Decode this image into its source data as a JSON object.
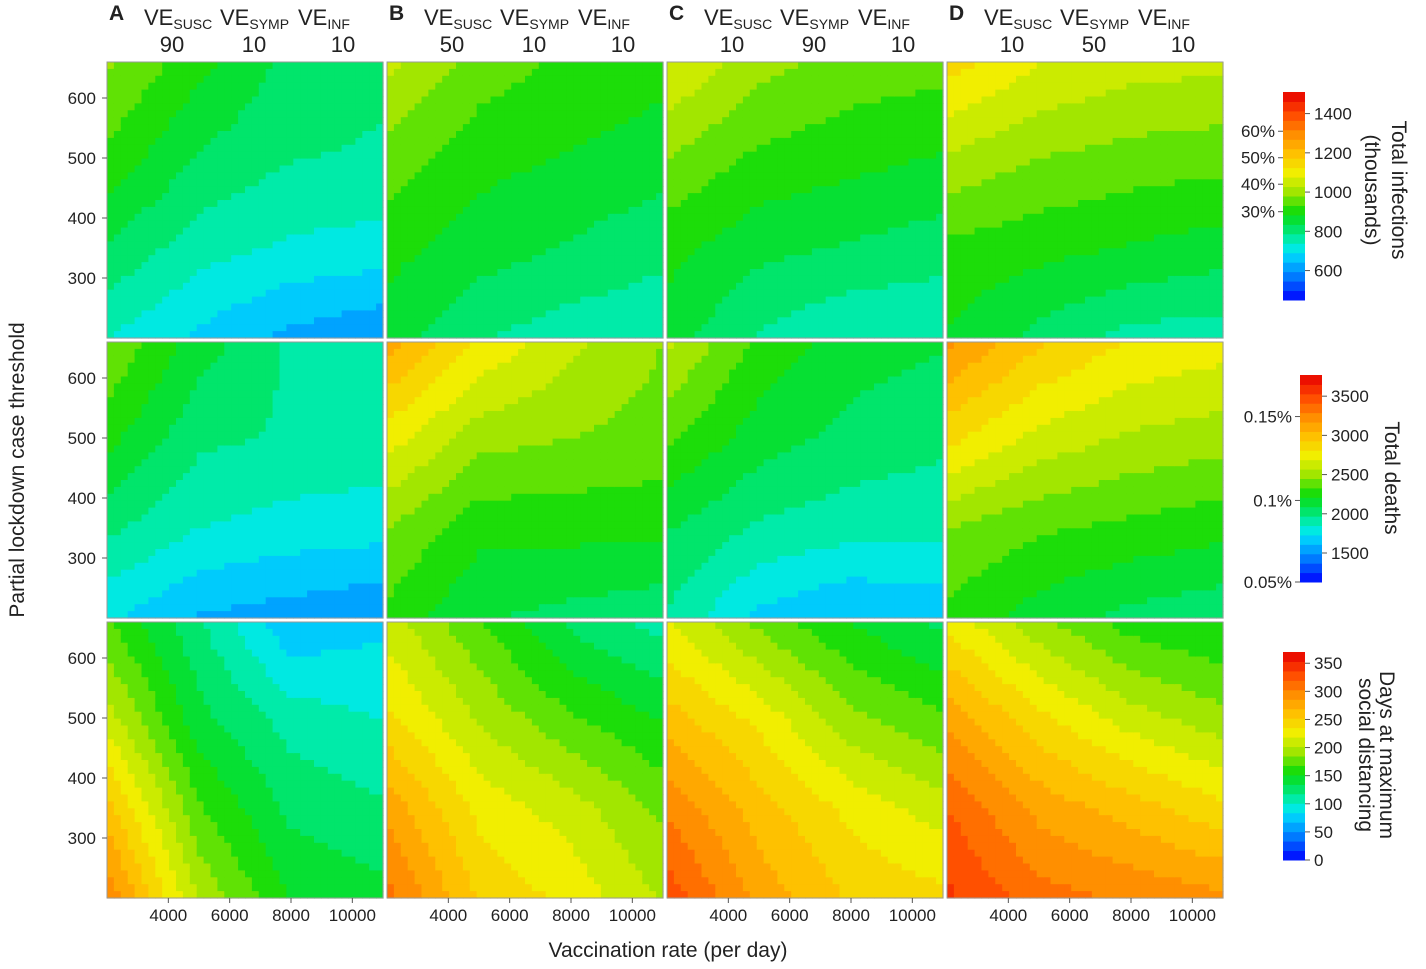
{
  "x_axis_label": "Vaccination rate (per day)",
  "y_axis_label": "Partial lockdown case threshold",
  "x_ticks": [
    "4000",
    "6000",
    "8000",
    "10000"
  ],
  "y_ticks": [
    "600",
    "500",
    "400",
    "300"
  ],
  "columns": [
    {
      "letter": "A",
      "ve_susc": "90",
      "ve_symp": "10",
      "ve_inf": "10"
    },
    {
      "letter": "B",
      "ve_susc": "50",
      "ve_symp": "10",
      "ve_inf": "10"
    },
    {
      "letter": "C",
      "ve_susc": "10",
      "ve_symp": "90",
      "ve_inf": "10"
    },
    {
      "letter": "D",
      "ve_susc": "10",
      "ve_symp": "50",
      "ve_inf": "10"
    }
  ],
  "ve_label": "VE",
  "ve_sub": {
    "susc": "SUSC",
    "symp": "SYMP",
    "inf": "INF"
  },
  "colorbars": [
    {
      "title1": "Total infections",
      "title2": "(thousands)",
      "range": [
        450,
        1510
      ],
      "ticks": [
        "1400",
        "1200",
        "1000",
        "800",
        "600"
      ],
      "tick_values": [
        1400,
        1200,
        1000,
        800,
        600
      ],
      "left_ticks": [
        "60%",
        "50%",
        "40%",
        "30%"
      ],
      "left_tick_values": [
        1310,
        1175,
        1040,
        900
      ]
    },
    {
      "title1": "Total deaths",
      "title2": "",
      "range": [
        1130,
        3770
      ],
      "ticks": [
        "3500",
        "3000",
        "2500",
        "2000",
        "1500"
      ],
      "tick_values": [
        3500,
        3000,
        2500,
        2000,
        1500
      ],
      "left_ticks": [
        "0.15%",
        "0.1%",
        "0.05%"
      ],
      "left_tick_values": [
        3240,
        2170,
        1130
      ]
    },
    {
      "title1": "Days at maximum",
      "title2": "social distancing",
      "range": [
        0,
        370
      ],
      "ticks": [
        "350",
        "300",
        "250",
        "200",
        "150",
        "100",
        "50",
        "0"
      ],
      "tick_values": [
        350,
        300,
        250,
        200,
        150,
        100,
        50,
        0
      ],
      "left_ticks": [],
      "left_tick_values": []
    }
  ],
  "chart_data": {
    "type": "heatmap",
    "style": "filled contour, rainbow colormap (blue low to red high)",
    "xlim": [
      2000,
      11000
    ],
    "ylim": [
      200,
      660
    ],
    "grid_x": [
      2000,
      5000,
      8000,
      11000
    ],
    "grid_y": [
      200,
      350,
      500,
      660
    ],
    "rows": [
      "Total infections (thousands)",
      "Total deaths",
      "Days at maximum social distancing"
    ],
    "panels": [
      [
        {
          "column": "A",
          "z": [
            [
              740,
              680,
              630,
              600
            ],
            [
              830,
              760,
              730,
              720
            ],
            [
              920,
              830,
              790,
              780
            ],
            [
              990,
              900,
              820,
              800
            ]
          ]
        },
        {
          "column": "B",
          "z": [
            [
              860,
              790,
              760,
              750
            ],
            [
              900,
              860,
              830,
              800
            ],
            [
              960,
              900,
              880,
              860
            ],
            [
              1040,
              960,
              920,
              900
            ]
          ]
        },
        {
          "column": "C",
          "z": [
            [
              860,
              780,
              740,
              740
            ],
            [
              900,
              850,
              830,
              810
            ],
            [
              980,
              920,
              900,
              880
            ],
            [
              1080,
              1000,
              960,
              950
            ]
          ]
        },
        {
          "column": "D",
          "z": [
            [
              880,
              820,
              770,
              760
            ],
            [
              920,
              900,
              880,
              860
            ],
            [
              1020,
              980,
              960,
              950
            ],
            [
              1150,
              1080,
              1050,
              1040
            ]
          ]
        }
      ],
      [
        {
          "column": "A",
          "z": [
            [
              1750,
              1600,
              1550,
              1500
            ],
            [
              2000,
              1850,
              1800,
              1780
            ],
            [
              2250,
              2000,
              1950,
              1930
            ],
            [
              2450,
              2150,
              1950,
              1950
            ]
          ]
        },
        {
          "column": "B",
          "z": [
            [
              2300,
              2100,
              2050,
              2000
            ],
            [
              2450,
              2250,
              2250,
              2250
            ],
            [
              2750,
              2500,
              2450,
              2400
            ],
            [
              3100,
              2800,
              2600,
              2450
            ]
          ]
        },
        {
          "column": "C",
          "z": [
            [
              1950,
              1700,
              1600,
              1650
            ],
            [
              2100,
              1950,
              1900,
              1880
            ],
            [
              2350,
              2150,
              2050,
              2000
            ],
            [
              2600,
              2300,
              2150,
              2100
            ]
          ]
        },
        {
          "column": "D",
          "z": [
            [
              2300,
              2150,
              2050,
              2000
            ],
            [
              2450,
              2350,
              2300,
              2250
            ],
            [
              2850,
              2650,
              2550,
              2500
            ],
            [
              3200,
              2950,
              2800,
              2750
            ]
          ]
        }
      ],
      [
        {
          "column": "A",
          "z": [
            [
              300,
              200,
              150,
              140
            ],
            [
              260,
              170,
              130,
              120
            ],
            [
              210,
              140,
              110,
              100
            ],
            [
              170,
              120,
              70,
              80
            ]
          ]
        },
        {
          "column": "B",
          "z": [
            [
              310,
              250,
              230,
              200
            ],
            [
              280,
              230,
              210,
              180
            ],
            [
              240,
              200,
              170,
              150
            ],
            [
              210,
              170,
              130,
              110
            ]
          ]
        },
        {
          "column": "C",
          "z": [
            [
              330,
              280,
              250,
              240
            ],
            [
              300,
              260,
              230,
              210
            ],
            [
              260,
              230,
              190,
              170
            ],
            [
              220,
              180,
              150,
              130
            ]
          ]
        },
        {
          "column": "D",
          "z": [
            [
              340,
              310,
              300,
              290
            ],
            [
              320,
              280,
              260,
              240
            ],
            [
              280,
              240,
              210,
              190
            ],
            [
              230,
              190,
              160,
              150
            ]
          ]
        }
      ]
    ]
  }
}
